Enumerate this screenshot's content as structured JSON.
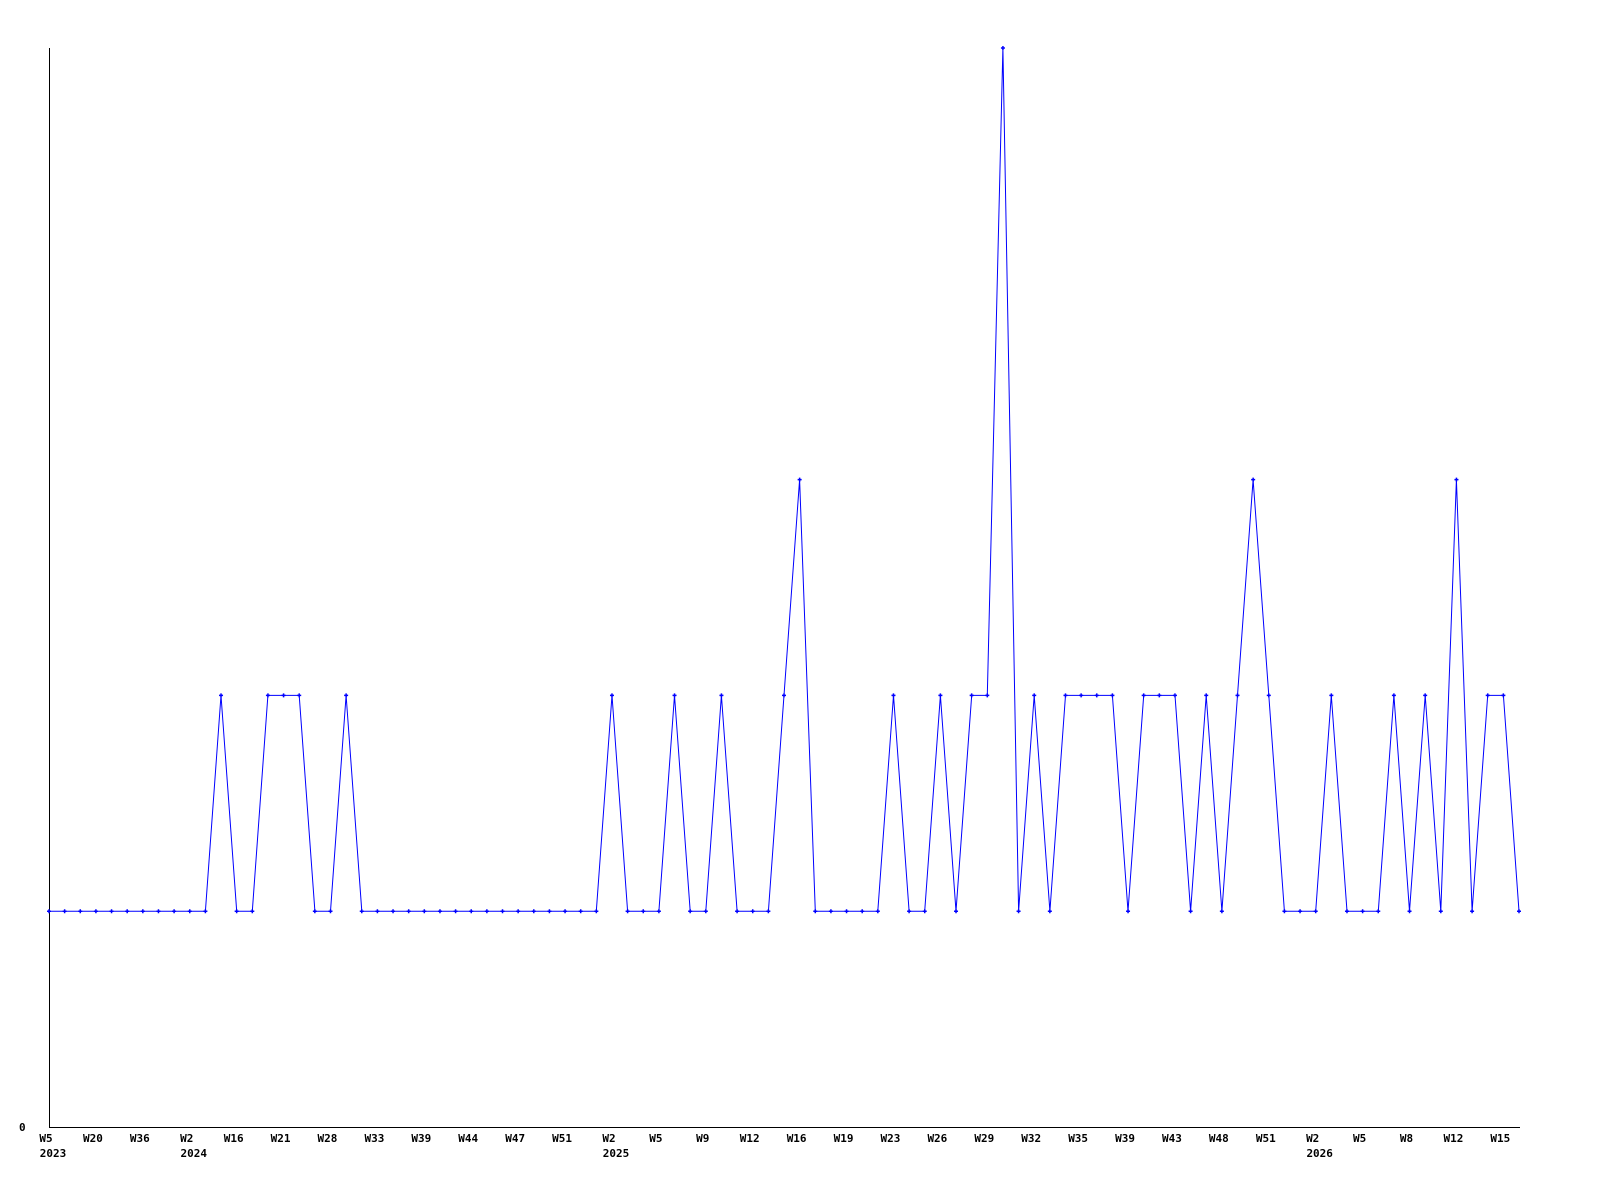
{
  "chart_data": {
    "type": "line",
    "title": "",
    "xlabel": "",
    "ylabel": "",
    "ylim": [
      0,
      5
    ],
    "y_tick_labels": [
      "0"
    ],
    "grid": false,
    "line_color": "#0000ff",
    "x_tick_labels": [
      {
        "index": 0,
        "week": "W5",
        "year": "2023"
      },
      {
        "index": 3,
        "week": "W20"
      },
      {
        "index": 6,
        "week": "W36"
      },
      {
        "index": 9,
        "week": "W2",
        "year": "2024"
      },
      {
        "index": 12,
        "week": "W16"
      },
      {
        "index": 15,
        "week": "W21"
      },
      {
        "index": 18,
        "week": "W28"
      },
      {
        "index": 21,
        "week": "W33"
      },
      {
        "index": 24,
        "week": "W39"
      },
      {
        "index": 27,
        "week": "W44"
      },
      {
        "index": 30,
        "week": "W47"
      },
      {
        "index": 33,
        "week": "W51"
      },
      {
        "index": 36,
        "week": "W2",
        "year": "2025"
      },
      {
        "index": 39,
        "week": "W5"
      },
      {
        "index": 42,
        "week": "W9"
      },
      {
        "index": 45,
        "week": "W12"
      },
      {
        "index": 48,
        "week": "W16"
      },
      {
        "index": 51,
        "week": "W19"
      },
      {
        "index": 54,
        "week": "W23"
      },
      {
        "index": 57,
        "week": "W26"
      },
      {
        "index": 60,
        "week": "W29"
      },
      {
        "index": 63,
        "week": "W32"
      },
      {
        "index": 66,
        "week": "W35"
      },
      {
        "index": 69,
        "week": "W39"
      },
      {
        "index": 72,
        "week": "W43"
      },
      {
        "index": 75,
        "week": "W48"
      },
      {
        "index": 78,
        "week": "W51"
      },
      {
        "index": 81,
        "week": "W2",
        "year": "2026"
      },
      {
        "index": 84,
        "week": "W5"
      },
      {
        "index": 87,
        "week": "W8"
      },
      {
        "index": 90,
        "week": "W12"
      },
      {
        "index": 93,
        "week": "W15"
      }
    ],
    "values": [
      1,
      1,
      1,
      1,
      1,
      1,
      1,
      1,
      1,
      1,
      1,
      2,
      1,
      1,
      2,
      2,
      2,
      1,
      1,
      2,
      1,
      1,
      1,
      1,
      1,
      1,
      1,
      1,
      1,
      1,
      1,
      1,
      1,
      1,
      1,
      1,
      2,
      1,
      1,
      1,
      2,
      1,
      1,
      2,
      1,
      1,
      1,
      2,
      3,
      1,
      1,
      1,
      1,
      1,
      2,
      1,
      1,
      2,
      1,
      2,
      2,
      5,
      1,
      2,
      1,
      2,
      2,
      2,
      2,
      1,
      2,
      2,
      2,
      1,
      2,
      1,
      2,
      3,
      2,
      1,
      1,
      1,
      2,
      1,
      1,
      1,
      2,
      1,
      2,
      1,
      3,
      1,
      2,
      2,
      1
    ]
  }
}
